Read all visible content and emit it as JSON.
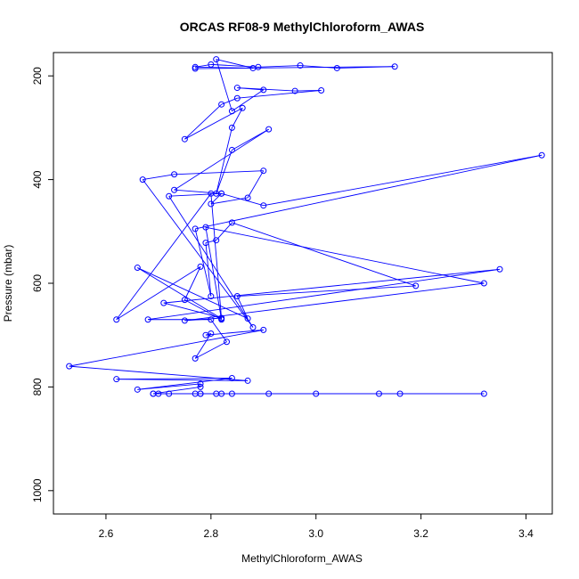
{
  "chart_data": {
    "type": "line",
    "title": "ORCAS RF08-9 MethylChloroform_AWAS",
    "xlabel": "MethylChloroform_AWAS",
    "ylabel": "Pressure (mbar)",
    "xlim": [
      2.5,
      3.45
    ],
    "ylim": [
      1045,
      155
    ],
    "y_inverted": true,
    "x_ticks": [
      2.6,
      2.8,
      3.0,
      3.2,
      3.4
    ],
    "y_ticks": [
      200,
      400,
      600,
      800,
      1000
    ],
    "x_tick_labels": [
      "2.6",
      "2.8",
      "3.0",
      "3.2",
      "3.4"
    ],
    "y_tick_labels": [
      "200",
      "400",
      "600",
      "800",
      "1000"
    ],
    "grid": false,
    "legend": "none",
    "line_color": "#0000ff",
    "series": [
      {
        "marker": "open-circle",
        "points": [
          [
            2.69,
            813
          ],
          [
            3.32,
            813
          ],
          [
            3.16,
            813
          ],
          [
            3.12,
            813
          ],
          [
            3.0,
            813
          ],
          [
            2.91,
            813
          ],
          [
            2.84,
            813
          ],
          [
            2.82,
            813
          ],
          [
            2.81,
            813
          ],
          [
            2.78,
            813
          ],
          [
            2.78,
            813
          ],
          [
            2.77,
            813
          ],
          [
            2.72,
            813
          ],
          [
            2.7,
            813
          ],
          [
            2.69,
            813
          ],
          [
            2.78,
            800
          ],
          [
            2.78,
            794
          ],
          [
            2.66,
            805
          ],
          [
            2.84,
            783
          ],
          [
            2.62,
            785
          ],
          [
            2.87,
            788
          ],
          [
            2.53,
            760
          ],
          [
            2.9,
            690
          ],
          [
            2.79,
            700
          ],
          [
            2.8,
            697
          ],
          [
            2.77,
            745
          ],
          [
            2.83,
            713
          ],
          [
            2.8,
            670
          ],
          [
            2.68,
            670
          ],
          [
            3.35,
            573
          ],
          [
            2.71,
            638
          ],
          [
            2.82,
            667
          ],
          [
            2.75,
            672
          ],
          [
            3.32,
            600
          ],
          [
            2.79,
            492
          ],
          [
            2.82,
            670
          ],
          [
            2.75,
            632
          ],
          [
            2.78,
            568
          ],
          [
            2.62,
            670
          ],
          [
            2.8,
            427
          ],
          [
            2.82,
            668
          ],
          [
            2.66,
            570
          ],
          [
            2.87,
            668
          ],
          [
            2.85,
            625
          ],
          [
            3.19,
            605
          ],
          [
            2.84,
            483
          ],
          [
            2.81,
            517
          ],
          [
            2.79,
            522
          ],
          [
            2.8,
            625
          ],
          [
            2.77,
            495
          ],
          [
            3.43,
            353
          ],
          [
            2.9,
            450
          ],
          [
            2.82,
            427
          ],
          [
            2.8,
            447
          ],
          [
            2.87,
            435
          ],
          [
            2.9,
            383
          ],
          [
            2.73,
            390
          ],
          [
            2.67,
            400
          ],
          [
            2.88,
            685
          ],
          [
            2.72,
            432
          ],
          [
            2.82,
            427
          ],
          [
            2.73,
            420
          ],
          [
            2.91,
            303
          ],
          [
            2.84,
            343
          ],
          [
            2.81,
            427
          ],
          [
            2.84,
            300
          ],
          [
            2.86,
            262
          ],
          [
            2.75,
            322
          ],
          [
            2.82,
            255
          ],
          [
            2.85,
            243
          ],
          [
            3.01,
            228
          ],
          [
            2.96,
            229
          ],
          [
            2.85,
            223
          ],
          [
            2.9,
            227
          ],
          [
            2.84,
            268
          ],
          [
            2.81,
            168
          ],
          [
            2.88,
            185
          ],
          [
            2.77,
            183
          ],
          [
            2.8,
            178
          ],
          [
            2.89,
            183
          ],
          [
            2.97,
            180
          ],
          [
            3.04,
            185
          ],
          [
            3.15,
            182
          ],
          [
            2.77,
            186
          ]
        ]
      }
    ]
  }
}
